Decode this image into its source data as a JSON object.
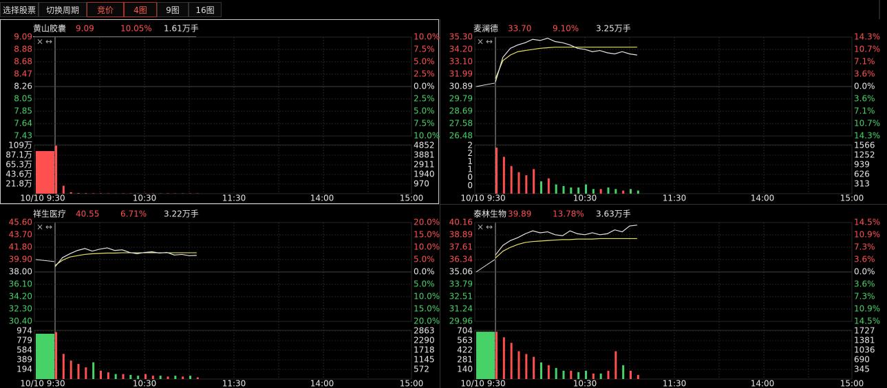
{
  "toolbar": {
    "buttons": [
      "选择股票",
      "切换周期",
      "竞价",
      "4图",
      "9图",
      "16图"
    ]
  },
  "time_labels": [
    "10/10 9:30",
    "10:30",
    "11:30",
    "14:00",
    "15:00"
  ],
  "panels": [
    {
      "name": "黄山胶囊",
      "price": "9.09",
      "change": "10.05%",
      "volume": "1.61万手",
      "price_ticks": [
        "9.09",
        "8.88",
        "8.68",
        "8.47",
        "8.26",
        "8.05",
        "7.85",
        "7.64",
        "7.43"
      ],
      "pct_ticks": [
        "10.0%",
        "7.5%",
        "5.0%",
        "2.5%",
        "0.0%",
        "2.5%",
        "5.0%",
        "7.5%",
        "10.0%"
      ],
      "vol_ticks_left": [
        "109万",
        "87.1万",
        "65.3万",
        "43.6万",
        "21.8万"
      ],
      "vol_ticks_right": [
        "4852",
        "3881",
        "2911",
        "1940",
        "970"
      ],
      "times": [
        0,
        5,
        10,
        15,
        20,
        25,
        30,
        35,
        40,
        45,
        50,
        55,
        60,
        65,
        70,
        75,
        80,
        85,
        90,
        95
      ],
      "price_line": [],
      "avg_line": [],
      "auction_price": [],
      "auction_volume": 4300,
      "volumes": [
        4852,
        800,
        150,
        60,
        50,
        40,
        40,
        30,
        30,
        30,
        30,
        30,
        30,
        30,
        30,
        30,
        30,
        30,
        30,
        30
      ]
    },
    {
      "name": "麦澜德",
      "price": "33.70",
      "change": "9.10%",
      "volume": "3.25万手",
      "price_ticks": [
        "35.30",
        "34.20",
        "33.10",
        "31.99",
        "30.89",
        "29.79",
        "28.69",
        "27.58",
        "26.48"
      ],
      "pct_ticks": [
        "14.3%",
        "10.7%",
        "7.1%",
        "3.6%",
        "0.0%",
        "3.6%",
        "7.1%",
        "10.7%",
        "14.3%"
      ],
      "vol_ticks_left": [
        "2",
        "2",
        "1",
        "1",
        "0",
        "0"
      ],
      "vol_ticks_right": [
        "1566",
        "1252",
        "939",
        "626",
        "313"
      ],
      "times": [
        0,
        5,
        10,
        15,
        20,
        25,
        30,
        35,
        40,
        45,
        50,
        55,
        60,
        65,
        70,
        75,
        80,
        85,
        90,
        95
      ],
      "price_line": [
        31.3,
        33.5,
        34.3,
        34.6,
        34.8,
        35.1,
        35.0,
        35.2,
        34.9,
        34.8,
        34.6,
        34.3,
        34.2,
        34.0,
        34.1,
        33.9,
        33.8,
        34.0,
        33.8,
        33.7
      ],
      "avg_line": [
        31.6,
        33.2,
        33.7,
        34.0,
        34.1,
        34.2,
        34.3,
        34.35,
        34.4,
        34.4,
        34.4,
        34.4,
        34.4,
        34.4,
        34.4,
        34.4,
        34.4,
        34.4,
        34.4,
        34.4
      ],
      "auction_price": [
        30.89,
        31.2
      ],
      "auction_volume": 0,
      "volumes": [
        1500,
        1200,
        900,
        700,
        600,
        800,
        400,
        500,
        300,
        250,
        200,
        200,
        300,
        150,
        150,
        200,
        150,
        100,
        150,
        100
      ]
    },
    {
      "name": "祥生医疗",
      "price": "40.55",
      "change": "6.71%",
      "volume": "3.22万手",
      "price_ticks": [
        "45.60",
        "43.70",
        "41.80",
        "39.90",
        "38.00",
        "36.10",
        "34.20",
        "32.30",
        "30.40"
      ],
      "pct_ticks": [
        "20.0%",
        "15.0%",
        "10.0%",
        "5.0%",
        "0.0%",
        "5.0%",
        "10.0%",
        "15.0%",
        "20.0%"
      ],
      "vol_ticks_left": [
        "974",
        "779",
        "584",
        "389",
        "194"
      ],
      "vol_ticks_right": [
        "2863",
        "2290",
        "1718",
        "1145",
        "572"
      ],
      "times": [
        0,
        5,
        10,
        15,
        20,
        25,
        30,
        35,
        40,
        45,
        50,
        55,
        60,
        65,
        70,
        75,
        80,
        85,
        90,
        95
      ],
      "price_line": [
        38.8,
        40.2,
        40.8,
        41.3,
        41.6,
        41.2,
        41.5,
        41.7,
        41.3,
        41.4,
        41.0,
        40.8,
        41.0,
        41.1,
        40.9,
        41.0,
        40.6,
        40.7,
        40.5,
        40.55
      ],
      "avg_line": [
        39.0,
        39.8,
        40.3,
        40.5,
        40.7,
        40.8,
        40.85,
        40.9,
        40.9,
        40.95,
        40.95,
        40.95,
        40.95,
        40.95,
        40.95,
        40.95,
        40.95,
        40.95,
        40.95,
        40.95
      ],
      "auction_price": [
        39.9,
        39.6
      ],
      "auction_volume": 2700,
      "volumes": [
        2800,
        1500,
        1100,
        900,
        700,
        1000,
        500,
        400,
        300,
        300,
        250,
        200,
        300,
        200,
        200,
        150,
        200,
        150,
        200,
        100
      ]
    },
    {
      "name": "泰林生物",
      "price": "39.89",
      "change": "13.78%",
      "volume": "3.63万手",
      "price_ticks": [
        "40.16",
        "38.89",
        "37.61",
        "36.34",
        "35.06",
        "33.79",
        "32.51",
        "31.24",
        "29.96"
      ],
      "pct_ticks": [
        "14.5%",
        "10.9%",
        "7.3%",
        "3.6%",
        "0.0%",
        "3.6%",
        "7.3%",
        "10.9%",
        "14.5%"
      ],
      "vol_ticks_left": [
        "704",
        "563",
        "422",
        "281",
        "140"
      ],
      "vol_ticks_right": [
        "1727",
        "1381",
        "1036",
        "690",
        "345"
      ],
      "times": [
        0,
        5,
        10,
        15,
        20,
        25,
        30,
        35,
        40,
        45,
        50,
        55,
        60,
        65,
        70,
        75,
        80,
        85,
        90,
        95
      ],
      "price_line": [
        36.8,
        37.8,
        38.3,
        38.6,
        39.0,
        39.3,
        39.1,
        39.2,
        38.9,
        38.8,
        39.3,
        39.0,
        38.9,
        39.1,
        38.9,
        39.0,
        39.4,
        39.2,
        39.8,
        39.89
      ],
      "avg_line": [
        36.5,
        37.2,
        37.6,
        37.9,
        38.1,
        38.2,
        38.25,
        38.3,
        38.35,
        38.4,
        38.4,
        38.45,
        38.45,
        38.45,
        38.5,
        38.5,
        38.5,
        38.5,
        38.5,
        38.5
      ],
      "auction_price": [
        35.06,
        36.34
      ],
      "auction_volume": 1700,
      "volumes": [
        1700,
        1500,
        1300,
        1000,
        900,
        800,
        600,
        500,
        400,
        300,
        300,
        250,
        300,
        200,
        200,
        300,
        1000,
        500,
        300,
        150
      ]
    }
  ]
}
